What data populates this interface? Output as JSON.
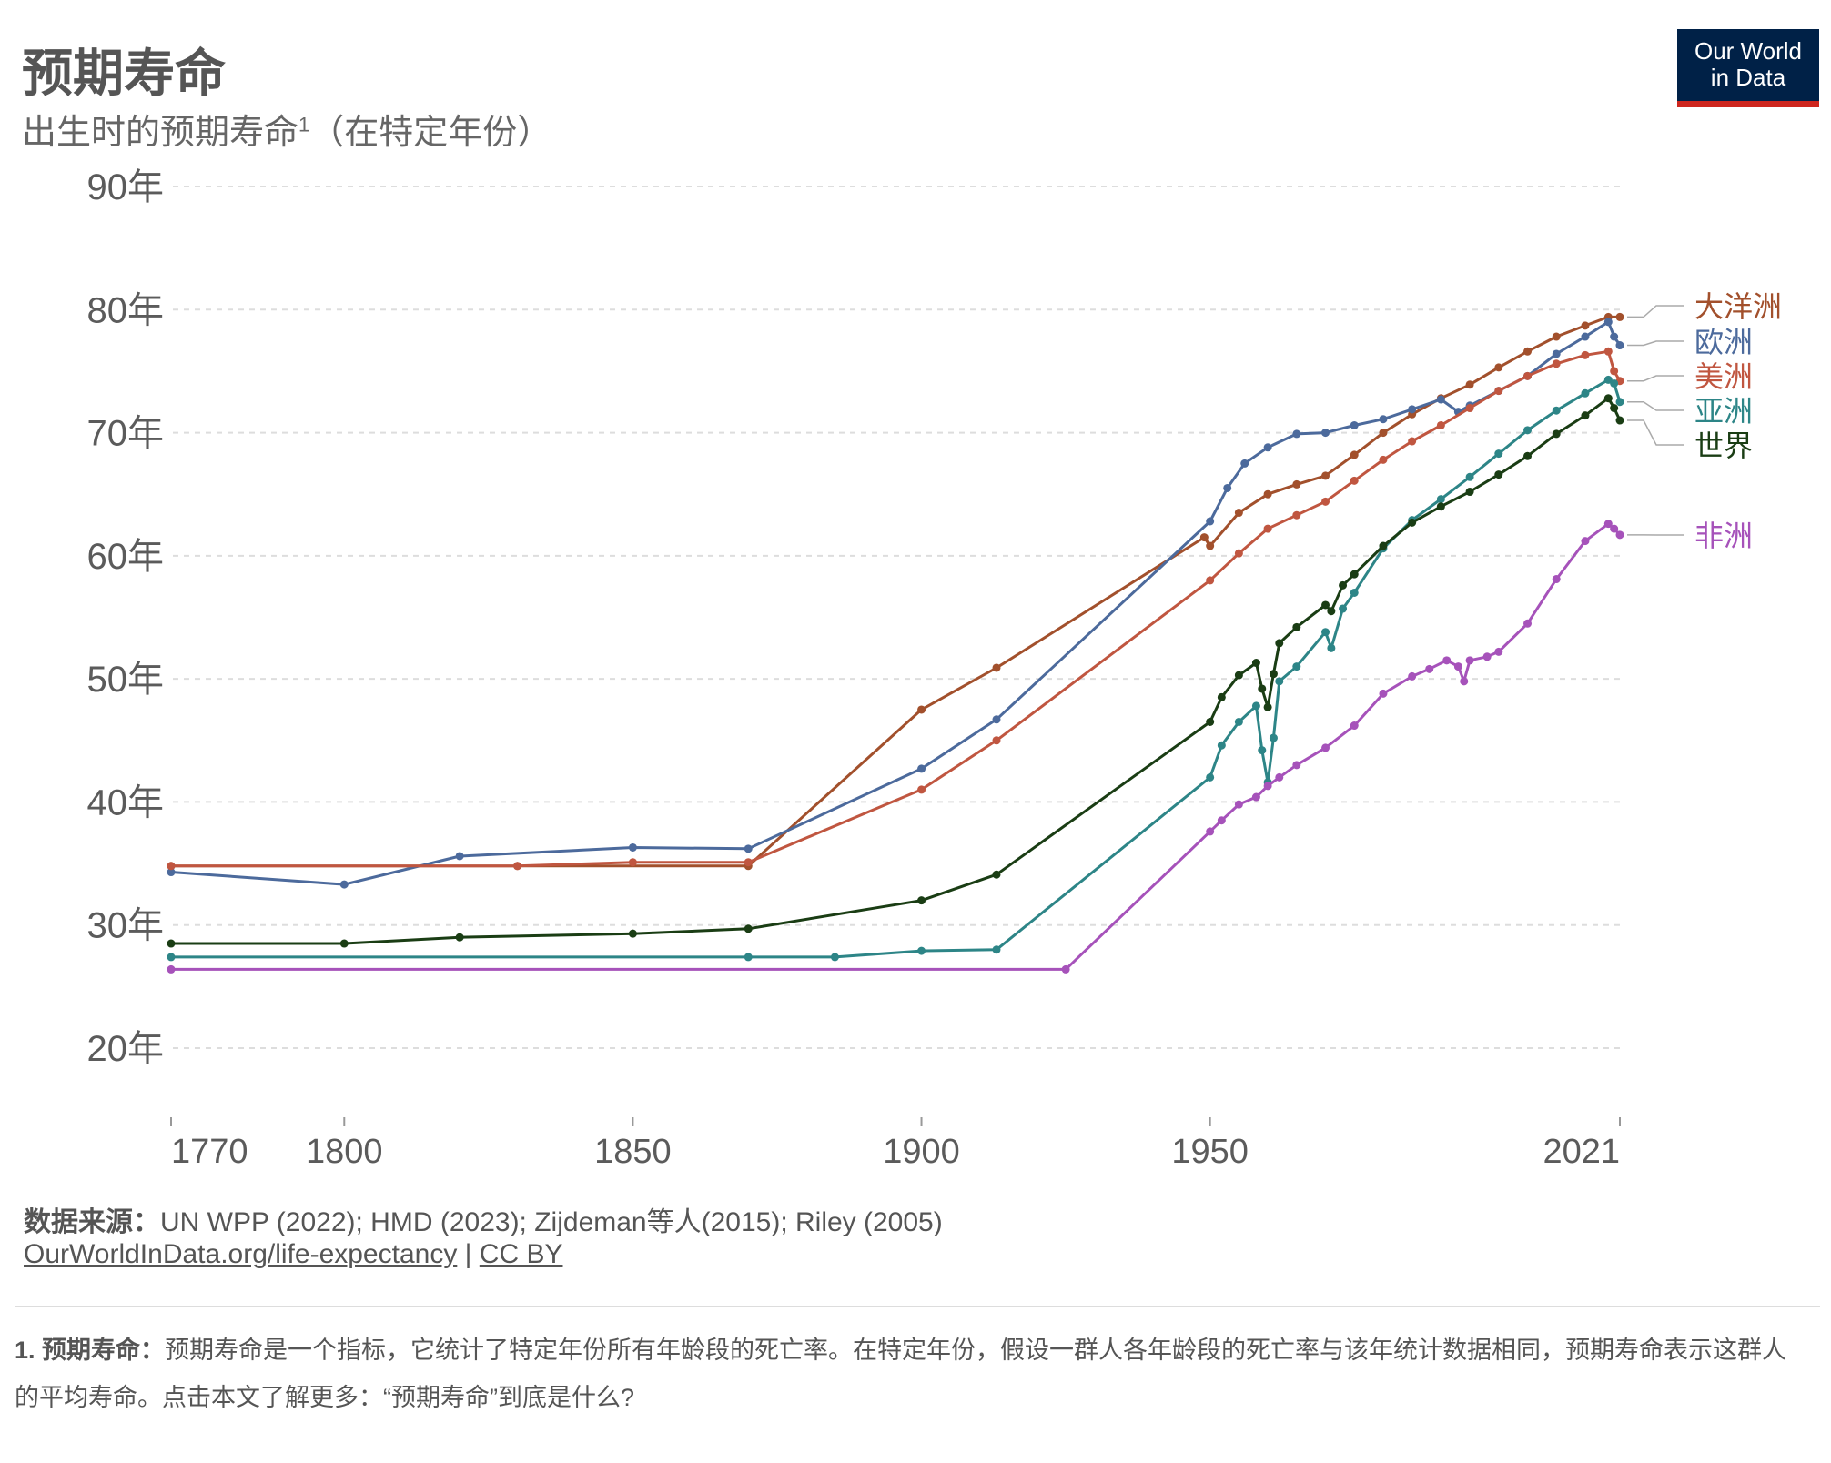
{
  "header": {
    "title": "预期寿命",
    "subtitle": "出生时的预期寿命",
    "subtitle_sup": "1",
    "subtitle_suffix": "（在特定年份）",
    "logo_line1": "Our World",
    "logo_line2": "in Data"
  },
  "footer": {
    "source_label": "数据来源：",
    "source_text": "UN WPP (2022); HMD (2023); Zijdeman等人(2015); Riley (2005)",
    "link_url": "OurWorldInData.org/life-expectancy",
    "link_sep": " | ",
    "license": "CC BY",
    "note_label": "1. 预期寿命：",
    "note_text": "预期寿命是一个指标，它统计了特定年份所有年龄段的死亡率。在特定年份，假设一群人各年龄段的死亡率与该年统计数据相同，预期寿命表示这群人的平均寿命。点击本文了解更多：“预期寿命”到底是什么?"
  },
  "colors": {
    "oceania": "#a2502c",
    "europe": "#4c6a9c",
    "americas": "#c05640",
    "asia": "#2d8587",
    "world": "#1a3d14",
    "africa": "#a652ba",
    "grid": "#dddddd",
    "axis_text": "#5b5b5b"
  },
  "chart_data": {
    "type": "line",
    "x_ticks": [
      "1770",
      "1800",
      "1850",
      "1900",
      "1950",
      "2021"
    ],
    "y_ticks": [
      "20年",
      "30年",
      "40年",
      "50年",
      "60年",
      "70年",
      "80年",
      "90年"
    ],
    "xlim": [
      1770,
      2021
    ],
    "ylim": [
      20,
      90
    ],
    "grid": true,
    "legend": "right-end labels",
    "series": [
      {
        "name": "大洋洲",
        "key": "oceania",
        "points": [
          [
            1770,
            34.8
          ],
          [
            1830,
            34.8
          ],
          [
            1870,
            34.8
          ],
          [
            1900,
            47.5
          ],
          [
            1913,
            50.9
          ],
          [
            1949,
            61.5
          ],
          [
            1950,
            60.8
          ],
          [
            1955,
            63.5
          ],
          [
            1960,
            65.0
          ],
          [
            1965,
            65.8
          ],
          [
            1970,
            66.5
          ],
          [
            1975,
            68.2
          ],
          [
            1980,
            70.0
          ],
          [
            1985,
            71.5
          ],
          [
            1990,
            72.8
          ],
          [
            1995,
            73.9
          ],
          [
            2000,
            75.3
          ],
          [
            2005,
            76.6
          ],
          [
            2010,
            77.8
          ],
          [
            2015,
            78.7
          ],
          [
            2019,
            79.4
          ],
          [
            2021,
            79.4
          ]
        ]
      },
      {
        "name": "欧洲",
        "key": "europe",
        "points": [
          [
            1770,
            34.3
          ],
          [
            1800,
            33.3
          ],
          [
            1820,
            35.6
          ],
          [
            1850,
            36.3
          ],
          [
            1870,
            36.2
          ],
          [
            1900,
            42.7
          ],
          [
            1913,
            46.7
          ],
          [
            1950,
            62.8
          ],
          [
            1953,
            65.5
          ],
          [
            1956,
            67.5
          ],
          [
            1960,
            68.8
          ],
          [
            1965,
            69.9
          ],
          [
            1970,
            70.0
          ],
          [
            1975,
            70.6
          ],
          [
            1980,
            71.1
          ],
          [
            1985,
            71.9
          ],
          [
            1990,
            72.7
          ],
          [
            1993,
            71.7
          ],
          [
            1995,
            72.2
          ],
          [
            2000,
            73.4
          ],
          [
            2005,
            74.6
          ],
          [
            2010,
            76.4
          ],
          [
            2015,
            77.8
          ],
          [
            2019,
            79.0
          ],
          [
            2020,
            77.8
          ],
          [
            2021,
            77.1
          ]
        ]
      },
      {
        "name": "美洲",
        "key": "americas",
        "points": [
          [
            1770,
            34.8
          ],
          [
            1830,
            34.8
          ],
          [
            1850,
            35.1
          ],
          [
            1870,
            35.1
          ],
          [
            1900,
            41.0
          ],
          [
            1913,
            45.0
          ],
          [
            1950,
            58.0
          ],
          [
            1955,
            60.2
          ],
          [
            1960,
            62.2
          ],
          [
            1965,
            63.3
          ],
          [
            1970,
            64.4
          ],
          [
            1975,
            66.1
          ],
          [
            1980,
            67.8
          ],
          [
            1985,
            69.3
          ],
          [
            1990,
            70.6
          ],
          [
            1995,
            72.0
          ],
          [
            2000,
            73.4
          ],
          [
            2005,
            74.6
          ],
          [
            2010,
            75.6
          ],
          [
            2015,
            76.3
          ],
          [
            2019,
            76.6
          ],
          [
            2020,
            75.0
          ],
          [
            2021,
            74.2
          ]
        ]
      },
      {
        "name": "亚洲",
        "key": "asia",
        "points": [
          [
            1770,
            27.4
          ],
          [
            1870,
            27.4
          ],
          [
            1885,
            27.4
          ],
          [
            1900,
            27.9
          ],
          [
            1913,
            28.0
          ],
          [
            1950,
            42.0
          ],
          [
            1952,
            44.6
          ],
          [
            1955,
            46.5
          ],
          [
            1958,
            47.8
          ],
          [
            1959,
            44.2
          ],
          [
            1960,
            41.6
          ],
          [
            1961,
            45.2
          ],
          [
            1962,
            49.8
          ],
          [
            1965,
            51.0
          ],
          [
            1970,
            53.8
          ],
          [
            1971,
            52.5
          ],
          [
            1973,
            55.7
          ],
          [
            1975,
            57.0
          ],
          [
            1980,
            60.6
          ],
          [
            1985,
            62.9
          ],
          [
            1990,
            64.6
          ],
          [
            1995,
            66.4
          ],
          [
            2000,
            68.3
          ],
          [
            2005,
            70.2
          ],
          [
            2010,
            71.8
          ],
          [
            2015,
            73.2
          ],
          [
            2019,
            74.3
          ],
          [
            2020,
            74.0
          ],
          [
            2021,
            72.5
          ]
        ]
      },
      {
        "name": "世界",
        "key": "world",
        "points": [
          [
            1770,
            28.5
          ],
          [
            1800,
            28.5
          ],
          [
            1820,
            29.0
          ],
          [
            1850,
            29.3
          ],
          [
            1870,
            29.7
          ],
          [
            1900,
            32.0
          ],
          [
            1913,
            34.1
          ],
          [
            1950,
            46.5
          ],
          [
            1952,
            48.5
          ],
          [
            1955,
            50.3
          ],
          [
            1958,
            51.3
          ],
          [
            1959,
            49.2
          ],
          [
            1960,
            47.7
          ],
          [
            1961,
            50.4
          ],
          [
            1962,
            52.9
          ],
          [
            1965,
            54.2
          ],
          [
            1970,
            56.0
          ],
          [
            1971,
            55.5
          ],
          [
            1973,
            57.6
          ],
          [
            1975,
            58.5
          ],
          [
            1980,
            60.8
          ],
          [
            1985,
            62.7
          ],
          [
            1990,
            64.0
          ],
          [
            1995,
            65.2
          ],
          [
            2000,
            66.6
          ],
          [
            2005,
            68.1
          ],
          [
            2010,
            69.9
          ],
          [
            2015,
            71.4
          ],
          [
            2019,
            72.8
          ],
          [
            2020,
            72.0
          ],
          [
            2021,
            71.0
          ]
        ]
      },
      {
        "name": "非洲",
        "key": "africa",
        "points": [
          [
            1770,
            26.4
          ],
          [
            1925,
            26.4
          ],
          [
            1950,
            37.6
          ],
          [
            1952,
            38.5
          ],
          [
            1955,
            39.8
          ],
          [
            1958,
            40.4
          ],
          [
            1960,
            41.3
          ],
          [
            1962,
            42.0
          ],
          [
            1965,
            43.0
          ],
          [
            1970,
            44.4
          ],
          [
            1975,
            46.2
          ],
          [
            1980,
            48.8
          ],
          [
            1985,
            50.2
          ],
          [
            1988,
            50.8
          ],
          [
            1991,
            51.5
          ],
          [
            1993,
            51.0
          ],
          [
            1994,
            49.8
          ],
          [
            1995,
            51.5
          ],
          [
            1998,
            51.8
          ],
          [
            2000,
            52.2
          ],
          [
            2005,
            54.5
          ],
          [
            2010,
            58.1
          ],
          [
            2015,
            61.2
          ],
          [
            2019,
            62.6
          ],
          [
            2020,
            62.2
          ],
          [
            2021,
            61.7
          ]
        ]
      }
    ]
  }
}
